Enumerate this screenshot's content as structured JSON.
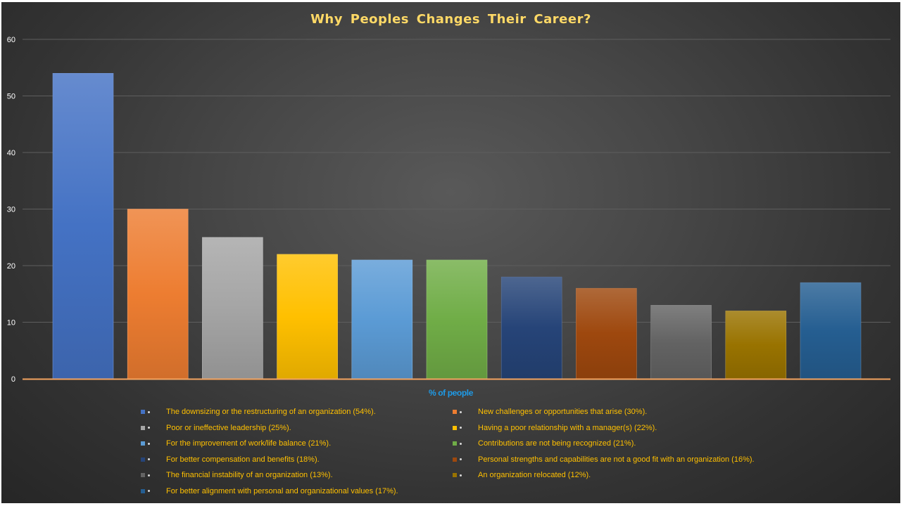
{
  "chart_data": {
    "type": "bar",
    "title": "Why Peoples Changes Their Career?",
    "xlabel": "% of people",
    "ylabel": "",
    "ylim": [
      0,
      60
    ],
    "yticks": [
      0,
      10,
      20,
      30,
      40,
      50,
      60
    ],
    "grid": true,
    "legend_position": "bottom",
    "categories": [
      "The downsizing or the restructuring of an organization (54%).",
      "New challenges or opportunities that arise (30%).",
      "Poor or ineffective leadership (25%).",
      "Having a poor relationship with a manager(s) (22%).",
      "For the improvement of work/life balance (21%).",
      "Contributions are not being recognized (21%).",
      "For better compensation and benefits (18%).",
      "Personal strengths and capabilities are not a good fit with an organization (16%).",
      "The financial instability of an organization (13%).",
      "An organization relocated (12%).",
      "For better alignment with personal and organizational values (17%)."
    ],
    "values": [
      54,
      30,
      25,
      22,
      21,
      21,
      18,
      16,
      13,
      12,
      17
    ],
    "colors": [
      "#4472c4",
      "#ed7d31",
      "#a5a5a5",
      "#ffc000",
      "#5b9bd5",
      "#70ad47",
      "#264478",
      "#9e480e",
      "#636363",
      "#997300",
      "#255e91"
    ]
  },
  "style": {
    "title_color": "#ffd966",
    "axis_title_color": "#1e9be8",
    "legend_text_color": "#ffc000",
    "tick_color": "#ffffff",
    "gridline_color": "#5e5e5e",
    "baseline_color": "#f4a460"
  }
}
